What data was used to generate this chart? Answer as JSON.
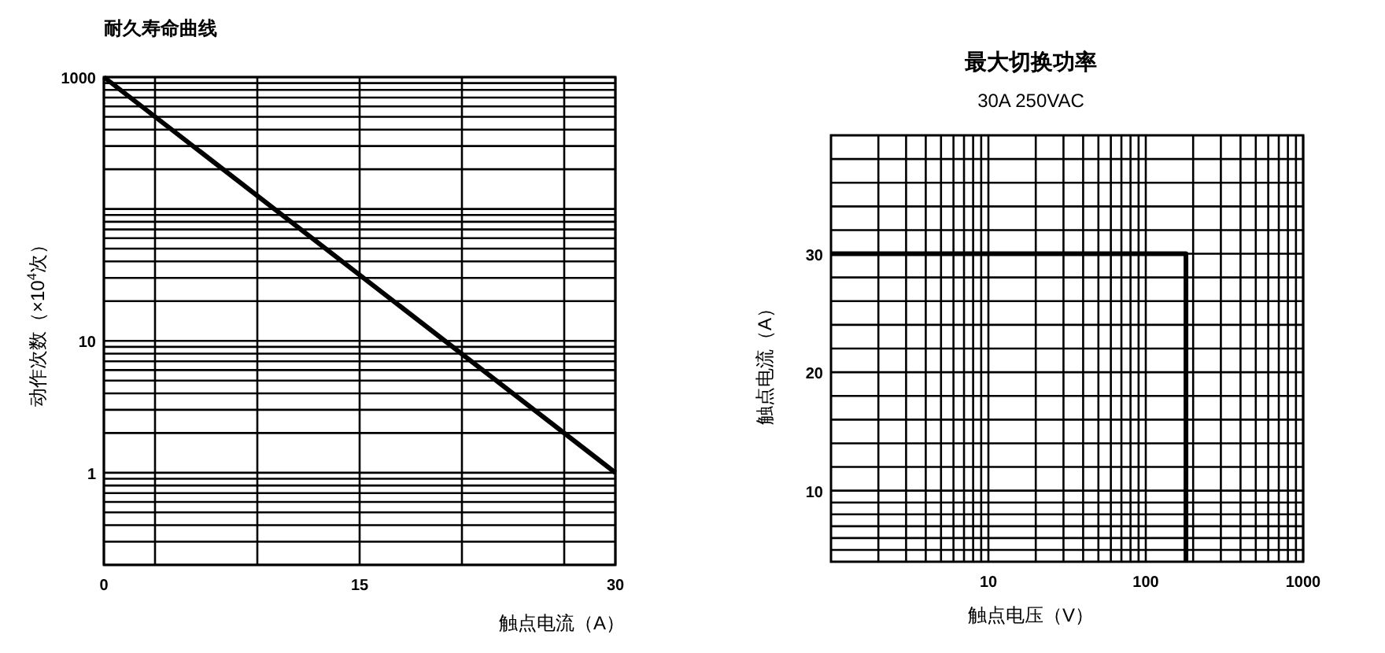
{
  "chart_data": [
    {
      "type": "line",
      "title": "耐久寿命曲线",
      "xlabel": "触点电流（A）",
      "ylabel": "动作次数（×10$^{4}$次）",
      "log": "y",
      "grid": true,
      "x": [
        0,
        30
      ],
      "series": [
        {
          "color": "#000000",
          "values": [
            1000,
            1
          ]
        }
      ],
      "xlim": [
        0,
        30
      ],
      "xticks": [
        0,
        {
          "value": 3,
          "label": null
        },
        {
          "value": 9,
          "label": null
        },
        15,
        {
          "value": 21,
          "label": null
        },
        {
          "value": 27,
          "label": null
        },
        30
      ],
      "ylim": [
        0.2,
        1000
      ],
      "yticks": [
        {
          "value": 0.2,
          "label": null
        },
        {
          "value": 0.3,
          "label": null
        },
        {
          "value": 0.4,
          "label": null
        },
        {
          "value": 0.5,
          "label": null
        },
        {
          "value": 0.6,
          "label": null
        },
        {
          "value": 0.7,
          "label": null
        },
        {
          "value": 0.8,
          "label": null
        },
        {
          "value": 0.9,
          "label": null
        },
        1,
        {
          "value": 2,
          "label": null
        },
        {
          "value": 3,
          "label": null
        },
        {
          "value": 4,
          "label": null
        },
        {
          "value": 5,
          "label": null
        },
        {
          "value": 6,
          "label": null
        },
        {
          "value": 7,
          "label": null
        },
        {
          "value": 8,
          "label": null
        },
        {
          "value": 9,
          "label": null
        },
        10,
        {
          "value": 20,
          "label": null
        },
        {
          "value": 30,
          "label": null
        },
        {
          "value": 40,
          "label": null
        },
        {
          "value": 50,
          "label": null
        },
        {
          "value": 60,
          "label": null
        },
        {
          "value": 70,
          "label": null
        },
        {
          "value": 80,
          "label": null
        },
        {
          "value": 90,
          "label": null
        },
        {
          "value": 100,
          "label": null
        },
        {
          "value": 200,
          "label": null
        },
        {
          "value": 300,
          "label": null
        },
        {
          "value": 400,
          "label": null
        },
        {
          "value": 500,
          "label": null
        },
        {
          "value": 600,
          "label": null
        },
        {
          "value": 700,
          "label": null
        },
        {
          "value": 800,
          "label": null
        },
        {
          "value": 900,
          "label": null
        },
        1000
      ]
    },
    {
      "type": "line",
      "title": "最大切换功率",
      "subtitle": "30A 250VAC",
      "xlabel": "触点电压（V）",
      "ylabel": "触点电流（A）",
      "log": "x",
      "grid": true,
      "x": [
        1,
        180,
        180
      ],
      "series": [
        {
          "color": "#000000",
          "values": [
            30,
            30,
            4
          ]
        }
      ],
      "xlim": [
        1,
        1000
      ],
      "xticks": [
        {
          "value": 2,
          "label": null
        },
        {
          "value": 3,
          "label": null
        },
        {
          "value": 4,
          "label": null
        },
        {
          "value": 5,
          "label": null
        },
        {
          "value": 6,
          "label": null
        },
        {
          "value": 7,
          "label": null
        },
        {
          "value": 8,
          "label": null
        },
        {
          "value": 9,
          "label": null
        },
        10,
        {
          "value": 20,
          "label": null
        },
        {
          "value": 30,
          "label": null
        },
        {
          "value": 40,
          "label": null
        },
        {
          "value": 50,
          "label": null
        },
        {
          "value": 60,
          "label": null
        },
        {
          "value": 70,
          "label": null
        },
        {
          "value": 80,
          "label": null
        },
        {
          "value": 90,
          "label": null
        },
        100,
        {
          "value": 200,
          "label": null
        },
        {
          "value": 300,
          "label": null
        },
        {
          "value": 400,
          "label": null
        },
        {
          "value": 500,
          "label": null
        },
        {
          "value": 600,
          "label": null
        },
        {
          "value": 700,
          "label": null
        },
        {
          "value": 800,
          "label": null
        },
        {
          "value": 900,
          "label": null
        },
        1000
      ],
      "ylim": [
        4,
        40
      ],
      "yticks": [
        {
          "value": 5,
          "label": null
        },
        {
          "value": 6,
          "label": null
        },
        {
          "value": 7,
          "label": null
        },
        {
          "value": 8,
          "label": null
        },
        {
          "value": 9,
          "label": null
        },
        10,
        {
          "value": 12,
          "label": null
        },
        {
          "value": 14,
          "label": null
        },
        {
          "value": 16,
          "label": null
        },
        {
          "value": 18,
          "label": null
        },
        20,
        {
          "value": 22,
          "label": null
        },
        {
          "value": 24,
          "label": null
        },
        {
          "value": 26,
          "label": null
        },
        {
          "value": 28,
          "label": null
        },
        30,
        {
          "value": 32,
          "label": null
        },
        {
          "value": 34,
          "label": null
        },
        {
          "value": 36,
          "label": null
        },
        {
          "value": 38,
          "label": null
        }
      ]
    }
  ]
}
